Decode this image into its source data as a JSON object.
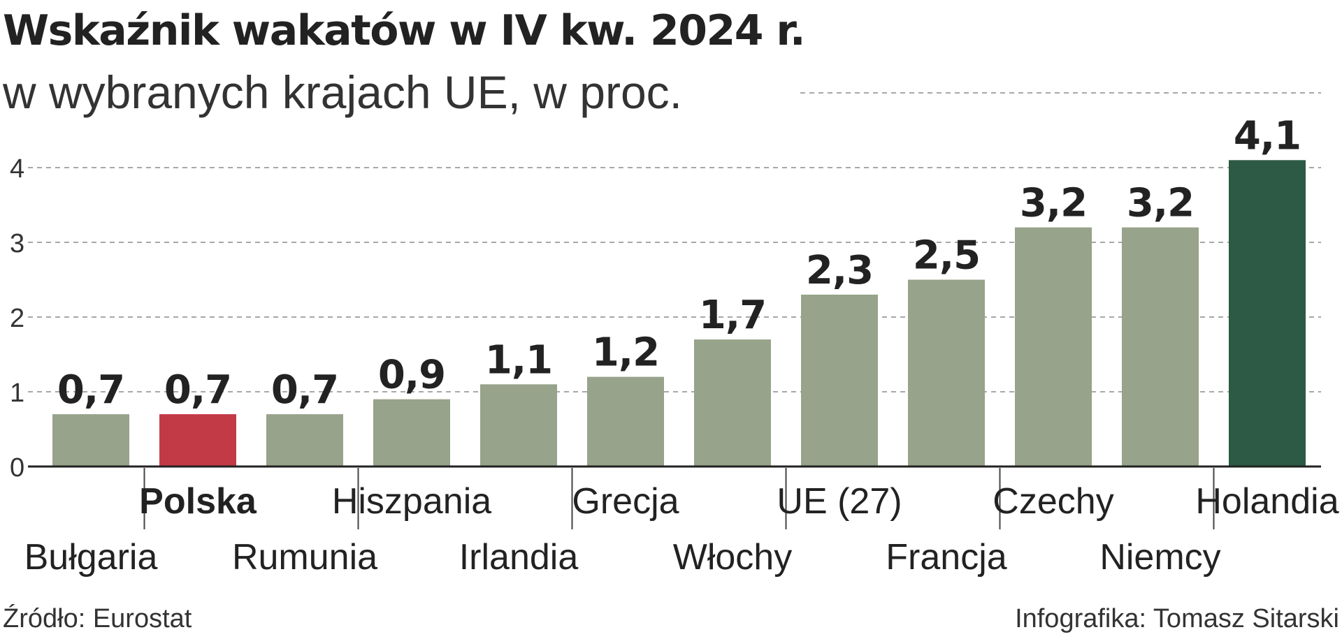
{
  "chart_data": {
    "type": "bar",
    "title": "Wskaźnik wakatów w IV kw. 2024 r.",
    "subtitle": "w wybranych krajach UE, w proc.",
    "categories": [
      "Bułgaria",
      "Polska",
      "Rumunia",
      "Hiszpania",
      "Irlandia",
      "Grecja",
      "Włochy",
      "UE (27)",
      "Francja",
      "Czechy",
      "Niemcy",
      "Holandia"
    ],
    "values": [
      0.7,
      0.7,
      0.7,
      0.9,
      1.1,
      1.2,
      1.7,
      2.3,
      2.5,
      3.2,
      3.2,
      4.1
    ],
    "value_labels": [
      "0,7",
      "0,7",
      "0,7",
      "0,9",
      "1,1",
      "1,2",
      "1,7",
      "2,3",
      "2,5",
      "3,2",
      "3,2",
      "4,1"
    ],
    "highlight": {
      "Polska": "#c33a47",
      "Holandia": "#2c5a44"
    },
    "default_color": "#97a38a",
    "yticks": [
      0,
      1,
      2,
      3,
      4
    ],
    "ytick_labels": [
      "0",
      "1",
      "2",
      "3",
      "4"
    ],
    "ylim": [
      0,
      5
    ],
    "xlabel": "",
    "ylabel": "",
    "grid": true
  },
  "source": "Źródło: Eurostat",
  "credit": "Infografika: Tomasz Sitarski"
}
